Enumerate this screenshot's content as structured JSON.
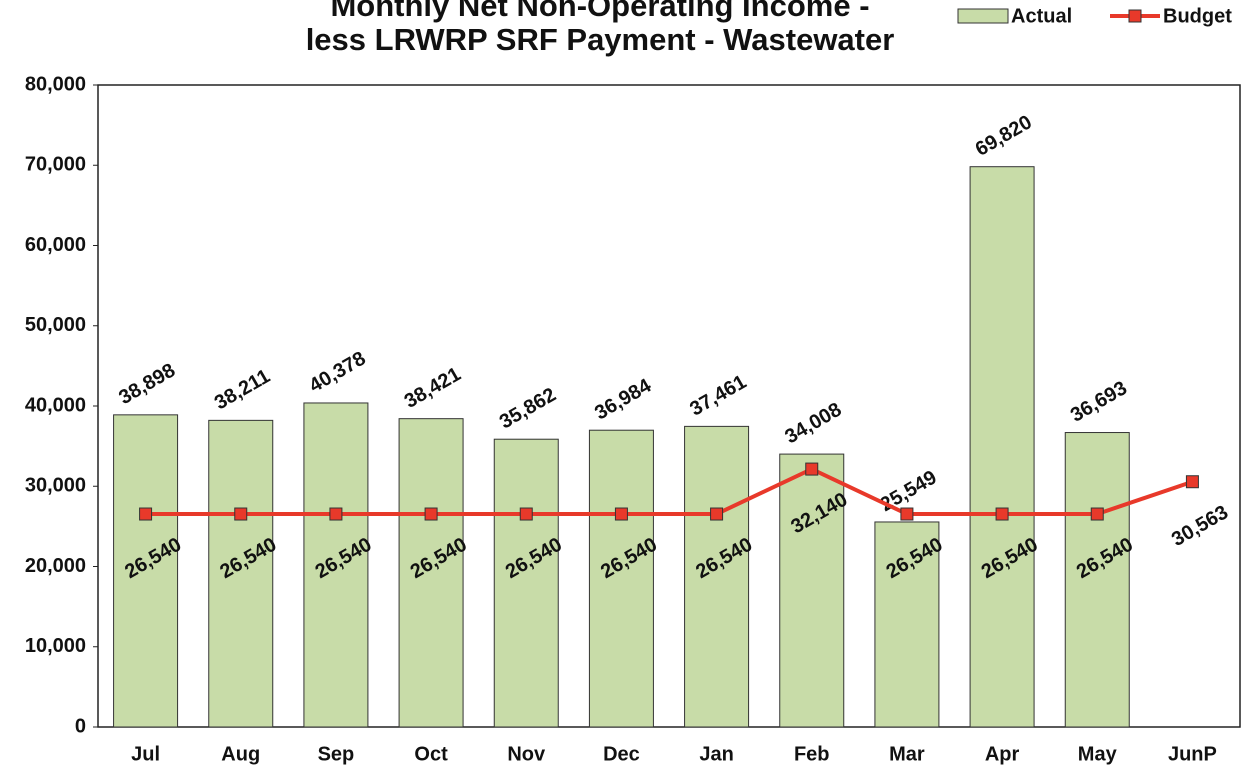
{
  "chart_data": {
    "type": "bar_line",
    "title": [
      "Monthly Net Non-Operating Income -",
      "less LRWRP SRF Payment - Wastewater"
    ],
    "categories": [
      "Jul",
      "Aug",
      "Sep",
      "Oct",
      "Nov",
      "Dec",
      "Jan",
      "Feb",
      "Mar",
      "Apr",
      "May",
      "JunP"
    ],
    "series": [
      {
        "name": "Actual",
        "type": "bar",
        "color": "#c8dca8",
        "values": [
          38898,
          38211,
          40378,
          38421,
          35862,
          36984,
          37461,
          34008,
          25549,
          69820,
          36693,
          null
        ],
        "value_labels": [
          "38,898",
          "38,211",
          "40,378",
          "38,421",
          "35,862",
          "36,984",
          "37,461",
          "34,008",
          "25,549",
          "69,820",
          "36,693",
          null
        ]
      },
      {
        "name": "Budget",
        "type": "line",
        "color": "#e8392a",
        "values": [
          26540,
          26540,
          26540,
          26540,
          26540,
          26540,
          26540,
          32140,
          26540,
          26540,
          26540,
          30563
        ],
        "value_labels": [
          "26,540",
          "26,540",
          "26,540",
          "26,540",
          "26,540",
          "26,540",
          "26,540",
          "32,140",
          "26,540",
          "26,540",
          "26,540",
          "30,563"
        ]
      }
    ],
    "ylim": [
      0,
      80000
    ],
    "yticks": [
      0,
      {
        "value": 10000,
        "label": "10,000"
      },
      {
        "value": 20000,
        "label": "20,000"
      },
      {
        "value": 30000,
        "label": "30,000"
      },
      {
        "value": 40000,
        "label": "40,000"
      },
      {
        "value": 50000,
        "label": "50,000"
      },
      {
        "value": 60000,
        "label": "60,000"
      },
      {
        "value": 70000,
        "label": "70,000"
      },
      {
        "value": 80000,
        "label": "80,000"
      }
    ],
    "grid": false,
    "legend": "top-right"
  }
}
